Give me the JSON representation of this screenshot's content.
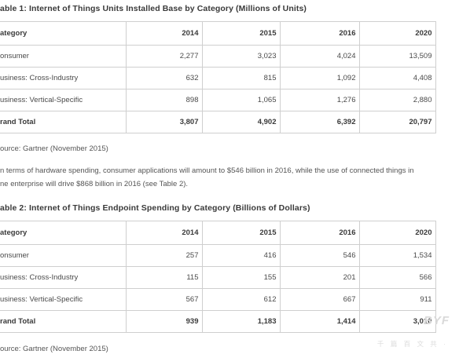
{
  "table1": {
    "caption": "able 1: Internet of Things Units Installed Base by Category (Millions of Units)",
    "header": [
      "ategory",
      "2014",
      "2015",
      "2016",
      "2020"
    ],
    "rows": [
      [
        "onsumer",
        "2,277",
        "3,023",
        "4,024",
        "13,509"
      ],
      [
        "usiness: Cross-Industry",
        "632",
        "815",
        "1,092",
        "4,408"
      ],
      [
        "usiness: Vertical-Specific",
        "898",
        "1,065",
        "1,276",
        "2,880"
      ]
    ],
    "total": [
      "rand Total",
      "3,807",
      "4,902",
      "6,392",
      "20,797"
    ],
    "source": "ource: Gartner (November 2015)"
  },
  "paragraph": {
    "line1": "n terms of hardware spending, consumer applications will amount to $546 billion in 2016, while the use of connected things in",
    "line2": "ne enterprise will drive $868 billion in 2016 (see Table 2)."
  },
  "table2": {
    "caption": "able 2: Internet of Things Endpoint Spending by Category (Billions of Dollars)",
    "header": [
      "ategory",
      "2014",
      "2015",
      "2016",
      "2020"
    ],
    "rows": [
      [
        "onsumer",
        "257",
        "416",
        "546",
        "1,534"
      ],
      [
        "usiness: Cross-Industry",
        "115",
        "155",
        "201",
        "566"
      ],
      [
        "usiness: Vertical-Specific",
        "567",
        "612",
        "667",
        "911"
      ]
    ],
    "total": [
      "rand Total",
      "939",
      "1,183",
      "1,414",
      "3,010"
    ],
    "source": "ource: Gartner (November 2015)"
  },
  "watermark": {
    "logo": "BYF",
    "subtitle": "千 篇 百 文 共 ·"
  }
}
